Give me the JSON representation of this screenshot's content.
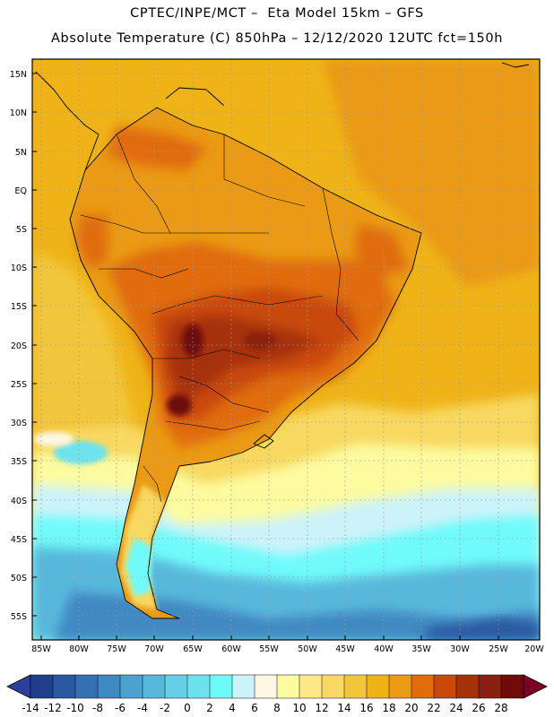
{
  "header": {
    "line1": "CPTEC/INPE/MCT –  Eta Model 15km – GFS",
    "line2": "Absolute Temperature (C) 850hPa – 12/12/2020 12UTC fct=150h"
  },
  "map": {
    "lat_labels": [
      "15N",
      "10N",
      "5N",
      "EQ",
      "5S",
      "10S",
      "15S",
      "20S",
      "25S",
      "30S",
      "35S",
      "40S",
      "45S",
      "50S",
      "55S"
    ],
    "lon_labels": [
      "85W",
      "80W",
      "75W",
      "70W",
      "65W",
      "60W",
      "55W",
      "50W",
      "45W",
      "40W",
      "35W",
      "30W",
      "25W",
      "20W"
    ]
  },
  "colorbar": {
    "ticks": [
      "-14",
      "-12",
      "-10",
      "-8",
      "-6",
      "-4",
      "-2",
      "0",
      "2",
      "4",
      "6",
      "8",
      "10",
      "12",
      "14",
      "16",
      "18",
      "20",
      "22",
      "24",
      "26",
      "28"
    ],
    "colors": [
      "#1f3f8c",
      "#2a58a2",
      "#3470b2",
      "#3f89c2",
      "#4ba1cf",
      "#58b8dc",
      "#66cfe8",
      "#6de2ee",
      "#6ffafa",
      "#ccf3fa",
      "#fdf7e2",
      "#fcfba0",
      "#fce889",
      "#f8d860",
      "#f2c63a",
      "#efb318",
      "#ea9a14",
      "#e06c0a",
      "#c9480a",
      "#a6320a",
      "#8a2010",
      "#6e0c0c"
    ],
    "low_color": "#2b3f9b",
    "high_color": "#7a0024"
  }
}
